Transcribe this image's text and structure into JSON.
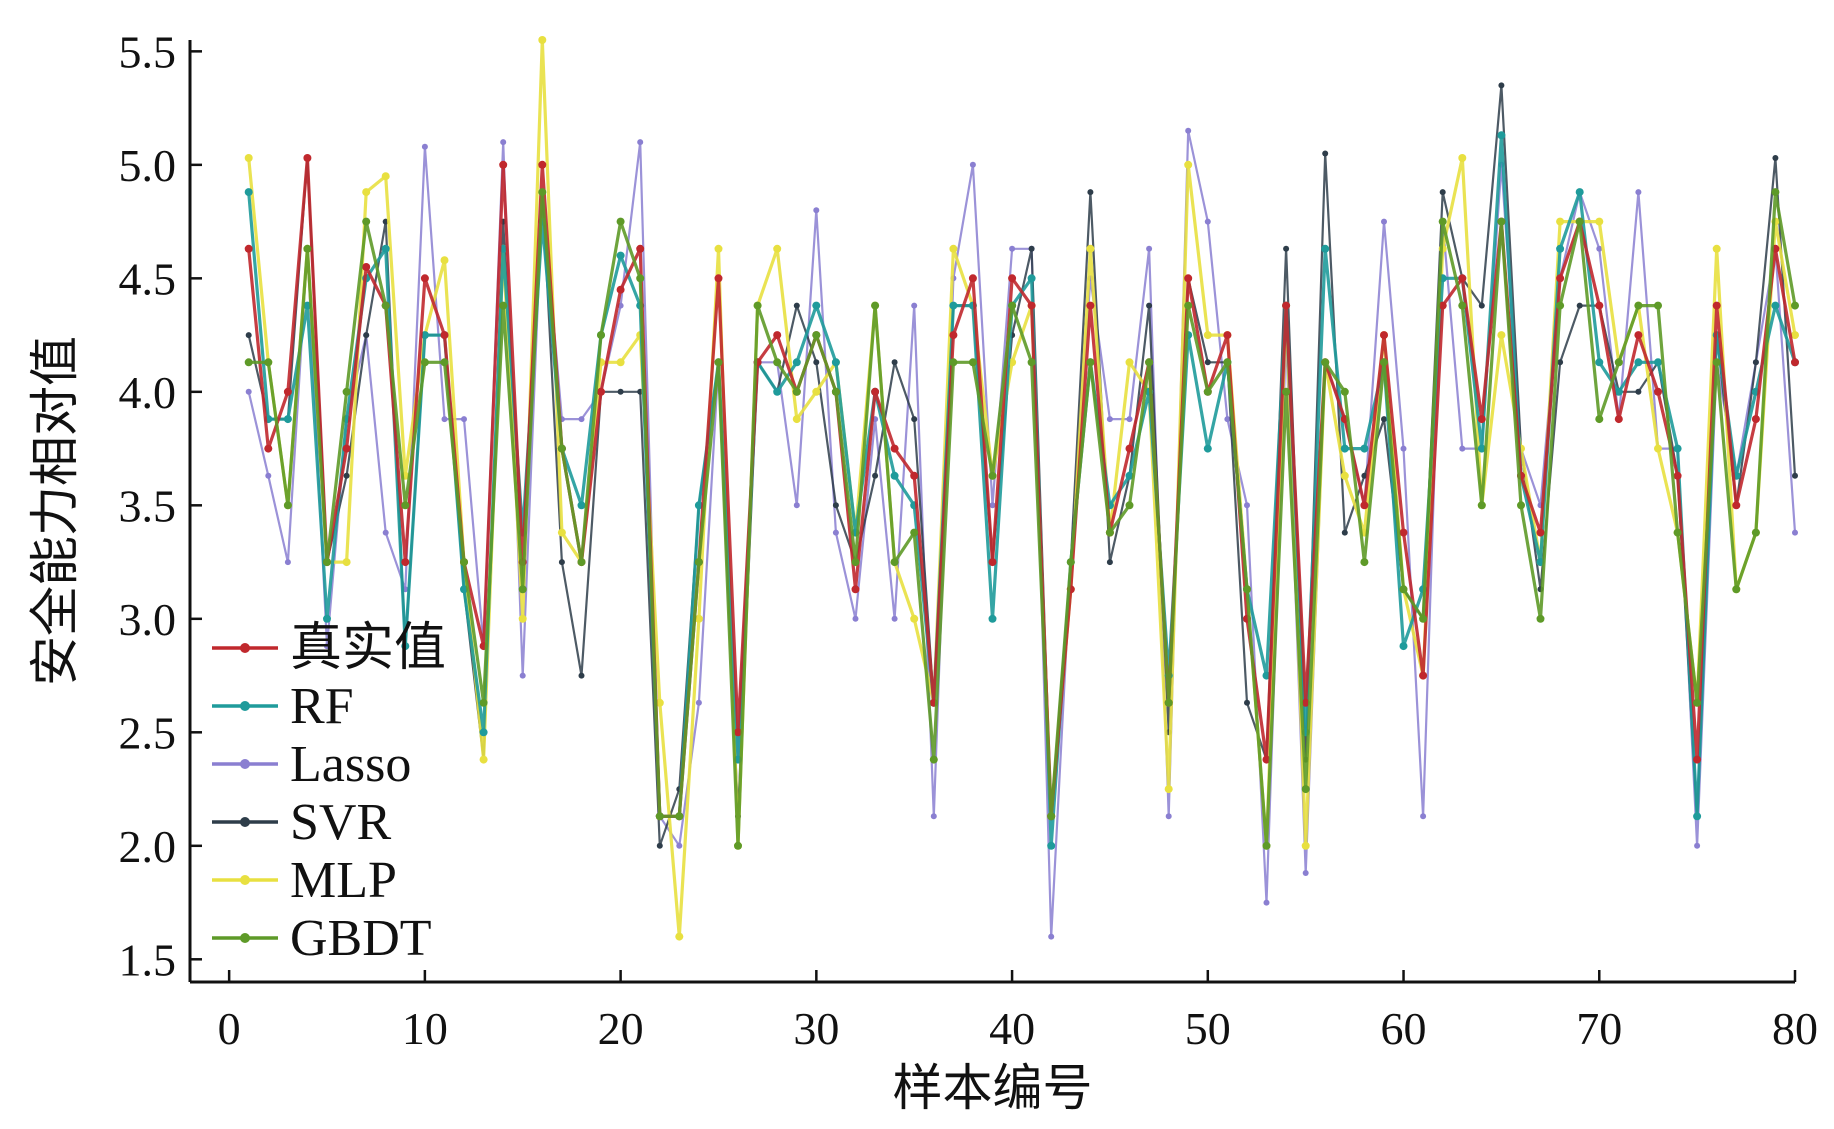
{
  "chart_data": {
    "type": "line",
    "title": "",
    "xlabel": "样本编号",
    "ylabel": "安全能力相对值",
    "xlim": [
      -2,
      80
    ],
    "ylim": [
      1.4,
      5.55
    ],
    "xticks": [
      "0",
      "10",
      "20",
      "30",
      "40",
      "50",
      "60",
      "70",
      "80"
    ],
    "yticks": [
      "1.5",
      "2.0",
      "2.5",
      "3.0",
      "3.5",
      "4.0",
      "4.5",
      "5.0",
      "5.5"
    ],
    "grid": false,
    "legend_position": "lower-left",
    "x": [
      1,
      2,
      3,
      4,
      5,
      6,
      7,
      8,
      9,
      10,
      11,
      12,
      13,
      14,
      15,
      16,
      17,
      18,
      19,
      20,
      21,
      22,
      23,
      24,
      25,
      26,
      27,
      28,
      29,
      30,
      31,
      32,
      33,
      34,
      35,
      36,
      37,
      38,
      39,
      40,
      41,
      42,
      43,
      44,
      45,
      46,
      47,
      48,
      49,
      50,
      51,
      52,
      53,
      54,
      55,
      56,
      57,
      58,
      59,
      60,
      61,
      62,
      63,
      64,
      65,
      66,
      67,
      68,
      69,
      70,
      71,
      72,
      73,
      74,
      75,
      76,
      77,
      78,
      79,
      80
    ],
    "series": [
      {
        "name": "真实值",
        "color": "#c0282d",
        "values": [
          4.63,
          3.75,
          4.0,
          5.03,
          3.25,
          3.75,
          4.55,
          4.38,
          3.25,
          4.5,
          4.25,
          3.25,
          2.88,
          5.0,
          3.25,
          5.0,
          3.75,
          3.25,
          4.0,
          4.45,
          4.63,
          2.13,
          2.13,
          3.25,
          4.5,
          2.5,
          4.13,
          4.25,
          4.0,
          4.25,
          4.0,
          3.13,
          4.0,
          3.75,
          3.63,
          2.63,
          4.25,
          4.5,
          3.25,
          4.5,
          4.38,
          2.13,
          3.13,
          4.38,
          3.38,
          3.75,
          4.13,
          2.63,
          4.5,
          4.0,
          4.25,
          3.0,
          2.38,
          4.38,
          2.63,
          4.13,
          3.88,
          3.5,
          4.25,
          3.38,
          2.75,
          4.38,
          4.5,
          3.88,
          4.75,
          3.63,
          3.38,
          4.5,
          4.75,
          4.38,
          3.88,
          4.25,
          4.0,
          3.63,
          2.38,
          4.38,
          3.5,
          3.88,
          4.63,
          4.13
        ]
      },
      {
        "name": "RF",
        "color": "#1f9b9b",
        "values": [
          4.88,
          3.88,
          3.88,
          4.38,
          3.0,
          3.88,
          4.5,
          4.63,
          2.88,
          4.25,
          4.25,
          3.13,
          2.5,
          4.63,
          3.38,
          4.75,
          3.75,
          3.5,
          4.25,
          4.6,
          4.38,
          2.13,
          2.13,
          3.5,
          4.13,
          2.38,
          4.13,
          4.0,
          4.13,
          4.38,
          4.13,
          3.38,
          4.0,
          3.63,
          3.5,
          2.63,
          4.38,
          4.38,
          3.0,
          4.38,
          4.5,
          2.0,
          3.25,
          4.13,
          3.5,
          3.63,
          4.0,
          2.75,
          4.25,
          3.75,
          4.13,
          3.13,
          2.75,
          4.38,
          2.5,
          4.63,
          3.75,
          3.75,
          4.13,
          2.88,
          3.13,
          4.5,
          4.5,
          3.75,
          5.13,
          3.63,
          3.25,
          4.63,
          4.88,
          4.13,
          4.0,
          4.13,
          4.13,
          3.75,
          2.13,
          4.25,
          3.63,
          4.0,
          4.38,
          4.13
        ]
      },
      {
        "name": "Lasso",
        "color": "#8a7fd1",
        "values": [
          4.0,
          3.63,
          3.25,
          4.63,
          2.88,
          3.88,
          4.25,
          3.38,
          3.13,
          5.08,
          3.88,
          3.88,
          2.88,
          5.1,
          2.75,
          4.88,
          3.88,
          3.88,
          4.0,
          4.38,
          5.1,
          2.13,
          2.0,
          2.63,
          4.13,
          2.38,
          4.13,
          4.13,
          3.5,
          4.8,
          3.38,
          3.0,
          3.88,
          3.0,
          4.38,
          2.13,
          4.5,
          5.0,
          3.5,
          4.63,
          4.63,
          1.6,
          3.25,
          4.5,
          3.88,
          3.88,
          4.63,
          2.13,
          5.15,
          4.75,
          3.88,
          3.5,
          1.75,
          4.25,
          1.88,
          4.13,
          3.88,
          3.5,
          4.75,
          3.75,
          2.13,
          4.75,
          3.75,
          3.75,
          5.0,
          3.75,
          3.5,
          4.5,
          4.88,
          4.63,
          3.88,
          4.88,
          3.75,
          3.75,
          2.0,
          4.13,
          3.63,
          4.13,
          4.63,
          3.38
        ]
      },
      {
        "name": "SVR",
        "color": "#2e3d4a",
        "values": [
          4.25,
          3.88,
          3.88,
          5.03,
          3.25,
          3.63,
          4.25,
          4.75,
          2.88,
          4.25,
          4.25,
          3.13,
          2.38,
          4.75,
          3.13,
          4.88,
          3.25,
          2.75,
          4.0,
          4.0,
          4.0,
          2.0,
          2.25,
          3.5,
          4.13,
          2.13,
          4.13,
          4.0,
          4.38,
          4.13,
          3.5,
          3.25,
          3.63,
          4.13,
          3.88,
          2.63,
          4.38,
          4.38,
          3.25,
          4.25,
          4.63,
          2.13,
          3.25,
          4.88,
          3.25,
          3.63,
          4.38,
          2.5,
          4.5,
          4.13,
          4.13,
          2.63,
          2.38,
          4.63,
          2.38,
          5.05,
          3.38,
          3.63,
          3.88,
          3.13,
          3.0,
          4.88,
          4.5,
          4.38,
          5.35,
          3.75,
          3.13,
          4.13,
          4.38,
          4.38,
          4.0,
          4.0,
          4.13,
          3.63,
          2.13,
          4.25,
          3.5,
          4.13,
          5.03,
          3.63
        ]
      },
      {
        "name": "MLP",
        "color": "#e8e040",
        "values": [
          5.03,
          4.13,
          3.5,
          4.63,
          3.25,
          3.25,
          4.88,
          4.95,
          3.63,
          4.25,
          4.58,
          3.25,
          2.38,
          4.63,
          3.0,
          5.55,
          3.38,
          3.25,
          4.13,
          4.13,
          4.25,
          2.63,
          1.6,
          3.0,
          4.63,
          2.0,
          4.38,
          4.63,
          3.88,
          4.0,
          4.13,
          3.38,
          4.38,
          3.25,
          3.0,
          2.63,
          4.63,
          4.38,
          3.63,
          4.13,
          4.38,
          2.13,
          3.13,
          4.63,
          3.38,
          4.13,
          4.0,
          2.25,
          5.0,
          4.25,
          4.25,
          3.13,
          2.0,
          4.38,
          2.0,
          4.13,
          3.63,
          3.38,
          4.25,
          3.13,
          2.75,
          4.63,
          5.03,
          3.5,
          4.25,
          3.75,
          3.25,
          4.75,
          4.75,
          4.75,
          4.13,
          4.38,
          3.75,
          3.38,
          2.63,
          4.63,
          3.13,
          3.38,
          4.75,
          4.25
        ]
      },
      {
        "name": "GBDT",
        "color": "#5e9a28",
        "values": [
          4.13,
          4.13,
          3.5,
          4.63,
          3.25,
          4.0,
          4.75,
          4.38,
          3.5,
          4.13,
          4.13,
          3.25,
          2.63,
          4.38,
          3.13,
          4.88,
          3.75,
          3.25,
          4.25,
          4.75,
          4.5,
          2.13,
          2.13,
          3.25,
          4.13,
          2.0,
          4.38,
          4.13,
          4.0,
          4.25,
          4.0,
          3.25,
          4.38,
          3.25,
          3.38,
          2.38,
          4.13,
          4.13,
          3.63,
          4.38,
          4.13,
          2.13,
          3.25,
          4.13,
          3.38,
          3.5,
          4.13,
          2.63,
          4.38,
          4.0,
          4.13,
          3.13,
          2.0,
          4.0,
          2.25,
          4.13,
          4.0,
          3.25,
          4.13,
          3.13,
          3.0,
          4.75,
          4.38,
          3.5,
          4.75,
          3.5,
          3.0,
          4.38,
          4.75,
          3.88,
          4.13,
          4.38,
          4.38,
          3.38,
          2.63,
          4.13,
          3.13,
          3.38,
          4.88,
          4.38
        ]
      }
    ]
  }
}
